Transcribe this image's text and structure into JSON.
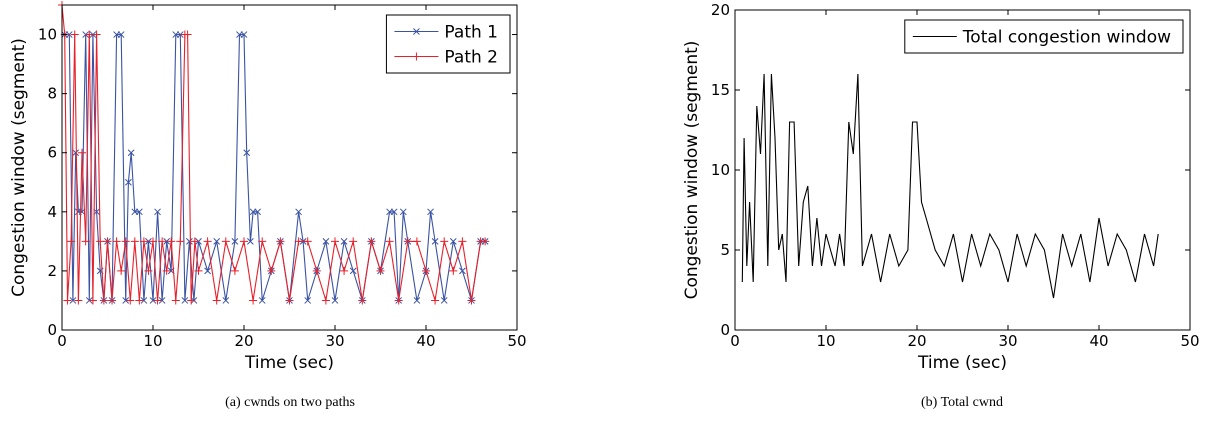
{
  "chart_data": [
    {
      "type": "line",
      "caption": "(a) cwnds on two paths",
      "xlabel": "Time (sec)",
      "ylabel": "Congestion window (segment)",
      "xlim": [
        0,
        50
      ],
      "xticks": [
        0,
        10,
        20,
        30,
        40,
        50
      ],
      "ylim": [
        0,
        11
      ],
      "yticks": [
        0,
        2,
        4,
        6,
        8,
        10
      ],
      "legend": "upper right",
      "series": [
        {
          "name": "Path 1",
          "color": "#3a53a4",
          "marker": "x",
          "x": [
            0.3,
            0.8,
            1.2,
            1.5,
            1.8,
            2.2,
            2.6,
            3.0,
            3.4,
            3.8,
            4.2,
            4.6,
            5.0,
            5.5,
            6.0,
            6.5,
            7.0,
            7.3,
            7.6,
            8.0,
            8.5,
            9.0,
            9.5,
            10.0,
            10.5,
            11.0,
            11.5,
            12.0,
            12.5,
            13.0,
            13.5,
            14.0,
            14.5,
            15.0,
            16,
            17,
            18,
            19,
            19.5,
            20,
            20.3,
            20.7,
            21,
            21.5,
            22,
            23,
            24,
            25,
            26,
            26.5,
            27,
            28,
            29,
            30,
            31,
            32,
            33,
            34,
            35,
            36,
            36.5,
            37,
            37.5,
            38,
            39,
            40,
            40.5,
            41,
            42,
            43,
            44,
            45,
            46,
            46.5
          ],
          "values": [
            10,
            10,
            1,
            6,
            4,
            4,
            10,
            1,
            10,
            4,
            2,
            1,
            3,
            1,
            10,
            10,
            1,
            5,
            6,
            4,
            4,
            1,
            3,
            1,
            4,
            1,
            3,
            2,
            10,
            10,
            1,
            3,
            1,
            3,
            2,
            3,
            1,
            3,
            10,
            10,
            6,
            3,
            4,
            4,
            1,
            2,
            3,
            1,
            4,
            3,
            1,
            2,
            3,
            1,
            3,
            2,
            1,
            3,
            2,
            4,
            4,
            1,
            4,
            3,
            1,
            2,
            4,
            3,
            1,
            3,
            2,
            1,
            3,
            3
          ]
        },
        {
          "name": "Path 2",
          "color": "#e8202a",
          "marker": "+",
          "x": [
            0,
            0.3,
            0.6,
            1.0,
            1.4,
            1.8,
            2.2,
            2.6,
            3.0,
            3.4,
            3.8,
            4.2,
            4.6,
            5.0,
            5.5,
            6.0,
            6.5,
            7.0,
            7.5,
            8.0,
            8.5,
            9.0,
            9.5,
            10,
            10.5,
            11,
            11.5,
            12,
            12.5,
            13,
            13.5,
            13.8,
            14.2,
            14.6,
            15,
            16,
            17,
            18,
            19,
            20,
            21,
            22,
            23,
            24,
            25,
            26,
            27,
            28,
            29,
            30,
            31,
            32,
            33,
            34,
            35,
            36,
            37,
            38,
            39,
            40,
            41,
            42,
            43,
            44,
            45,
            46,
            46.5
          ],
          "values": [
            11,
            10,
            1,
            3,
            10,
            1,
            6,
            3,
            10,
            1,
            10,
            3,
            1,
            3,
            1,
            3,
            2,
            3,
            1,
            3,
            1,
            3,
            2,
            3,
            1,
            3,
            2,
            3,
            1,
            3,
            10,
            10,
            1,
            3,
            2,
            3,
            1,
            3,
            2,
            3,
            1,
            3,
            2,
            3,
            1,
            3,
            3,
            2,
            1,
            3,
            2,
            3,
            1,
            3,
            2,
            3,
            1,
            3,
            3,
            2,
            1,
            3,
            2,
            3,
            1,
            3,
            3
          ]
        }
      ]
    },
    {
      "type": "line",
      "caption": "(b) Total cwnd",
      "xlabel": "Time (sec)",
      "ylabel": "Congestion window (segment)",
      "xlim": [
        0,
        50
      ],
      "xticks": [
        0,
        10,
        20,
        30,
        40,
        50
      ],
      "ylim": [
        0,
        20
      ],
      "yticks": [
        0,
        5,
        10,
        15,
        20
      ],
      "legend": "upper right",
      "series": [
        {
          "name": "Total congestion window",
          "color": "#000000",
          "x": [
            0.8,
            1.0,
            1.3,
            1.6,
            2.0,
            2.4,
            2.8,
            3.2,
            3.6,
            4.0,
            4.4,
            4.8,
            5.2,
            5.6,
            6.0,
            6.5,
            7.0,
            7.5,
            8.0,
            8.5,
            9,
            9.5,
            10,
            10.5,
            11,
            11.5,
            12,
            12.5,
            13,
            13.5,
            14,
            15,
            16,
            17,
            18,
            19,
            19.5,
            20,
            20.5,
            21,
            22,
            23,
            24,
            25,
            26,
            27,
            28,
            29,
            30,
            31,
            32,
            33,
            34,
            35,
            36,
            37,
            38,
            39,
            40,
            41,
            42,
            43,
            44,
            45,
            46,
            46.5
          ],
          "values": [
            3,
            12,
            4,
            8,
            3,
            14,
            11,
            16,
            4,
            16,
            12,
            5,
            6,
            3,
            13,
            13,
            4,
            8,
            9,
            4,
            7,
            4,
            6,
            5,
            4,
            6,
            4,
            13,
            11,
            16,
            4,
            6,
            3,
            6,
            4,
            5,
            13,
            13,
            8,
            7,
            5,
            4,
            6,
            3,
            6,
            4,
            6,
            5,
            3,
            6,
            4,
            6,
            5,
            2,
            6,
            4,
            6,
            3,
            7,
            4,
            6,
            5,
            3,
            6,
            4,
            6
          ]
        }
      ]
    }
  ]
}
